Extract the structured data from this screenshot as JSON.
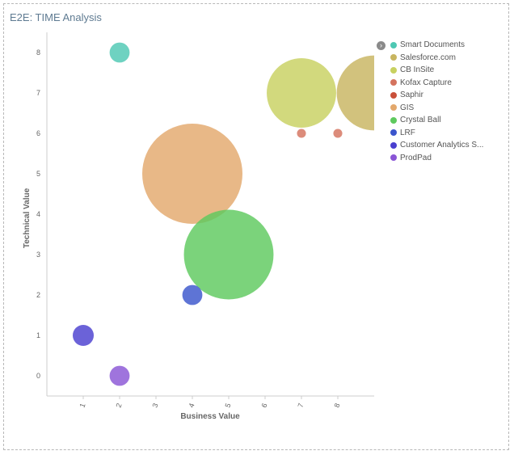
{
  "chart_data": {
    "type": "scatter",
    "title": "E2E: TIME Analysis",
    "xlabel": "Business Value",
    "ylabel": "Technical Value",
    "xlim": [
      0,
      9
    ],
    "ylim": [
      -0.5,
      8.5
    ],
    "x_ticks": [
      "1",
      "2",
      "3",
      "4",
      "5",
      "6",
      "7",
      "8"
    ],
    "y_ticks": [
      "0",
      "1",
      "2",
      "3",
      "4",
      "5",
      "6",
      "7",
      "8"
    ],
    "grid": false,
    "legend_position": "right",
    "series": [
      {
        "name": "Smart Documents",
        "color": "#4ec8b3",
        "points": [
          {
            "x": 2,
            "y": 8,
            "size": 1
          }
        ]
      },
      {
        "name": "Salesforce.com",
        "color": "#c8b560",
        "points": [
          {
            "x": 9,
            "y": 7,
            "size": 14
          }
        ]
      },
      {
        "name": "CB InSite",
        "color": "#c8d160",
        "points": [
          {
            "x": 7,
            "y": 7,
            "size": 12
          }
        ]
      },
      {
        "name": "Kofax Capture",
        "color": "#d4735e",
        "points": [
          {
            "x": 7,
            "y": 6,
            "size": 0.2
          },
          {
            "x": 8,
            "y": 6,
            "size": 0.2
          }
        ]
      },
      {
        "name": "Saphir",
        "color": "#c9503a",
        "points": []
      },
      {
        "name": "GIS",
        "color": "#e3a86c",
        "points": [
          {
            "x": 4,
            "y": 5,
            "size": 25
          }
        ]
      },
      {
        "name": "Crystal Ball",
        "color": "#5ec95e",
        "points": [
          {
            "x": 5,
            "y": 3,
            "size": 20
          }
        ]
      },
      {
        "name": "LRF",
        "color": "#3b55cc",
        "points": [
          {
            "x": 4,
            "y": 2,
            "size": 1
          }
        ]
      },
      {
        "name": "Customer Analytics S...",
        "color": "#4a3fcf",
        "points": [
          {
            "x": 1,
            "y": 1,
            "size": 1.1
          }
        ]
      },
      {
        "name": "ProdPad",
        "color": "#8a55d6",
        "points": [
          {
            "x": 2,
            "y": 0,
            "size": 1
          }
        ]
      }
    ]
  }
}
